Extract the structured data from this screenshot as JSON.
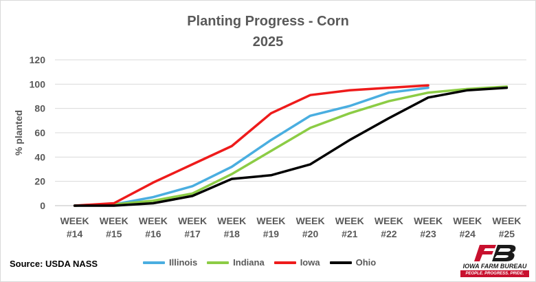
{
  "chart_data": {
    "type": "line",
    "title": "Planting Progress - Corn",
    "subtitle": "2025",
    "xlabel": "",
    "ylabel": "% planted",
    "ylim": [
      0,
      120
    ],
    "yticks": [
      "0",
      "20",
      "40",
      "60",
      "80",
      "100",
      "120"
    ],
    "categories": [
      [
        "WEEK",
        "#14"
      ],
      [
        "WEEK",
        "#15"
      ],
      [
        "WEEK",
        "#16"
      ],
      [
        "WEEK",
        "#17"
      ],
      [
        "WEEK",
        "#18"
      ],
      [
        "WEEK",
        "#19"
      ],
      [
        "WEEK",
        "#20"
      ],
      [
        "WEEK",
        "#21"
      ],
      [
        "WEEK",
        "#22"
      ],
      [
        "WEEK",
        "#23"
      ],
      [
        "WEEK",
        "#24"
      ],
      [
        "WEEK",
        "#25"
      ]
    ],
    "grid": "horizontal",
    "legend_position": "bottom",
    "series": [
      {
        "name": "Illinois",
        "color": "#4aaee0",
        "values": [
          0,
          1,
          7,
          16,
          32,
          54,
          74,
          82,
          93,
          97,
          null,
          null
        ]
      },
      {
        "name": "Indiana",
        "color": "#8ccc45",
        "values": [
          0,
          1,
          4,
          10,
          26,
          45,
          64,
          76,
          86,
          93,
          96,
          98
        ]
      },
      {
        "name": "Iowa",
        "color": "#ee1b1b",
        "values": [
          0,
          2,
          19,
          34,
          49,
          76,
          91,
          95,
          97,
          99,
          null,
          null
        ]
      },
      {
        "name": "Ohio",
        "color": "#000000",
        "values": [
          0,
          0,
          2,
          8,
          22,
          25,
          34,
          54,
          72,
          89,
          95,
          97
        ]
      }
    ]
  },
  "source": "Source: USDA NASS",
  "logo": {
    "name": "IOWA FARM BUREAU",
    "tagline": "PEOPLE. PROGRESS. PRIDE.",
    "brand_color": "#c8102e"
  }
}
